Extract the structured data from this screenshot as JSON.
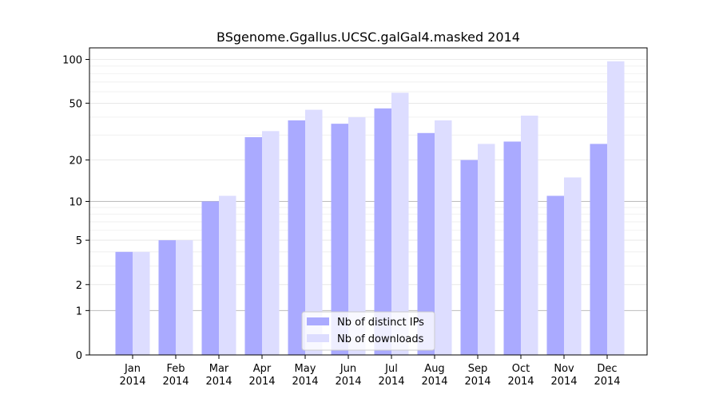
{
  "chart_data": {
    "type": "bar",
    "title": "BSgenome.Ggallus.UCSC.galGal4.masked 2014",
    "xlabel": "",
    "ylabel": "",
    "yscale": "log(1+y)",
    "ylim": [
      0,
      120
    ],
    "yticks": [
      0,
      1,
      2,
      5,
      10,
      20,
      50,
      100
    ],
    "ytick_labels": [
      "0",
      "1",
      "2",
      "5",
      "10",
      "20",
      "50",
      "100"
    ],
    "categories": [
      "Jan\n2014",
      "Feb\n2014",
      "Mar\n2014",
      "Apr\n2014",
      "May\n2014",
      "Jun\n2014",
      "Jul\n2014",
      "Aug\n2014",
      "Sep\n2014",
      "Oct\n2014",
      "Nov\n2014",
      "Dec\n2014"
    ],
    "series": [
      {
        "name": "Nb of distinct IPs",
        "color": "#aaaaff",
        "values": [
          4,
          5,
          10,
          29,
          38,
          36,
          46,
          31,
          20,
          27,
          11,
          26
        ]
      },
      {
        "name": "Nb of downloads",
        "color": "#ddddff",
        "values": [
          4,
          5,
          11,
          32,
          45,
          40,
          59,
          38,
          26,
          41,
          15,
          97
        ]
      }
    ],
    "legend": "lower-center",
    "grid": true
  }
}
